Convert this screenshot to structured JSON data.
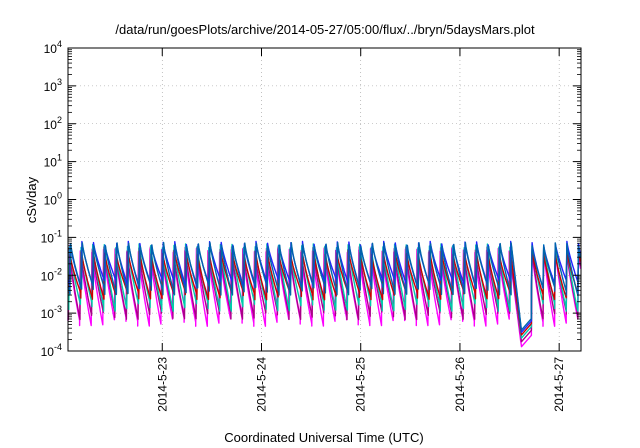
{
  "chart_data": {
    "type": "line",
    "title": "/data/run/goesPlots/archive/2014-05-27/05:00/flux/../bryn/5daysMars.plot",
    "xlabel": "Coordinated Universal Time (UTC)",
    "ylabel": "cSv/day",
    "yscale": "log",
    "ylim": [
      0.0001,
      10000
    ],
    "y_ticks": [
      {
        "base": "10",
        "exp": "4"
      },
      {
        "base": "10",
        "exp": "3"
      },
      {
        "base": "10",
        "exp": "2"
      },
      {
        "base": "10",
        "exp": "1"
      },
      {
        "base": "10",
        "exp": "0"
      },
      {
        "base": "10",
        "exp": "-1"
      },
      {
        "base": "10",
        "exp": "-2"
      },
      {
        "base": "10",
        "exp": "-3"
      },
      {
        "base": "10",
        "exp": "-4"
      }
    ],
    "x_ticks": [
      "2014-5-23",
      "2014-5-24",
      "2014-5-25",
      "2014-5-26",
      "2014-5-27"
    ],
    "xlim_days": [
      22.05,
      27.22
    ],
    "grid": true,
    "sawtooth_period_days": 0.117,
    "dip": {
      "start_day": 26.4,
      "min_day": 26.62,
      "recover_day": 26.72,
      "min_value": 0.00013
    },
    "series": [
      {
        "color": "#ff00ff",
        "peak": 0.045,
        "trough": 0.0006
      },
      {
        "color": "#aa0088",
        "peak": 0.05,
        "trough": 0.0009
      },
      {
        "color": "#00ccaa",
        "peak": 0.06,
        "trough": 0.0015
      },
      {
        "color": "#cc0000",
        "peak": 0.04,
        "trough": 0.003
      },
      {
        "color": "#2222ff",
        "peak": 0.07,
        "trough": 0.006
      },
      {
        "color": "#0066aa",
        "peak": 0.065,
        "trough": 0.004
      }
    ]
  }
}
